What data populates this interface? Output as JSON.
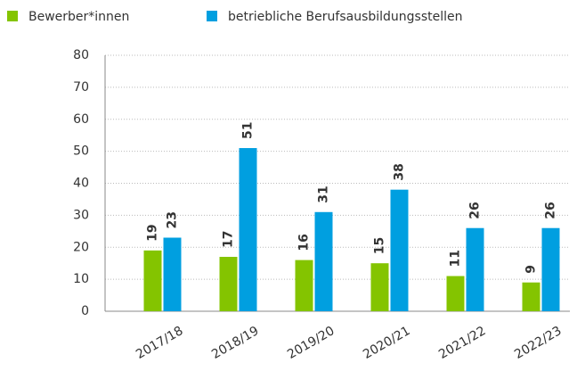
{
  "chart_data": {
    "type": "bar",
    "categories": [
      "2017/18",
      "2018/19",
      "2019/20",
      "2020/21",
      "2021/22",
      "2022/23"
    ],
    "series": [
      {
        "name": "Bewerber*innen",
        "color": "#84c400",
        "values": [
          19,
          17,
          16,
          15,
          11,
          9
        ]
      },
      {
        "name": "betriebliche Berufsausbildungsstellen",
        "color": "#009fe0",
        "values": [
          23,
          51,
          31,
          38,
          26,
          26
        ]
      }
    ],
    "ylim": [
      0,
      80
    ],
    "yticks": [
      0,
      10,
      20,
      30,
      40,
      50,
      60,
      70,
      80
    ],
    "grid": true,
    "legend": "top-left"
  }
}
